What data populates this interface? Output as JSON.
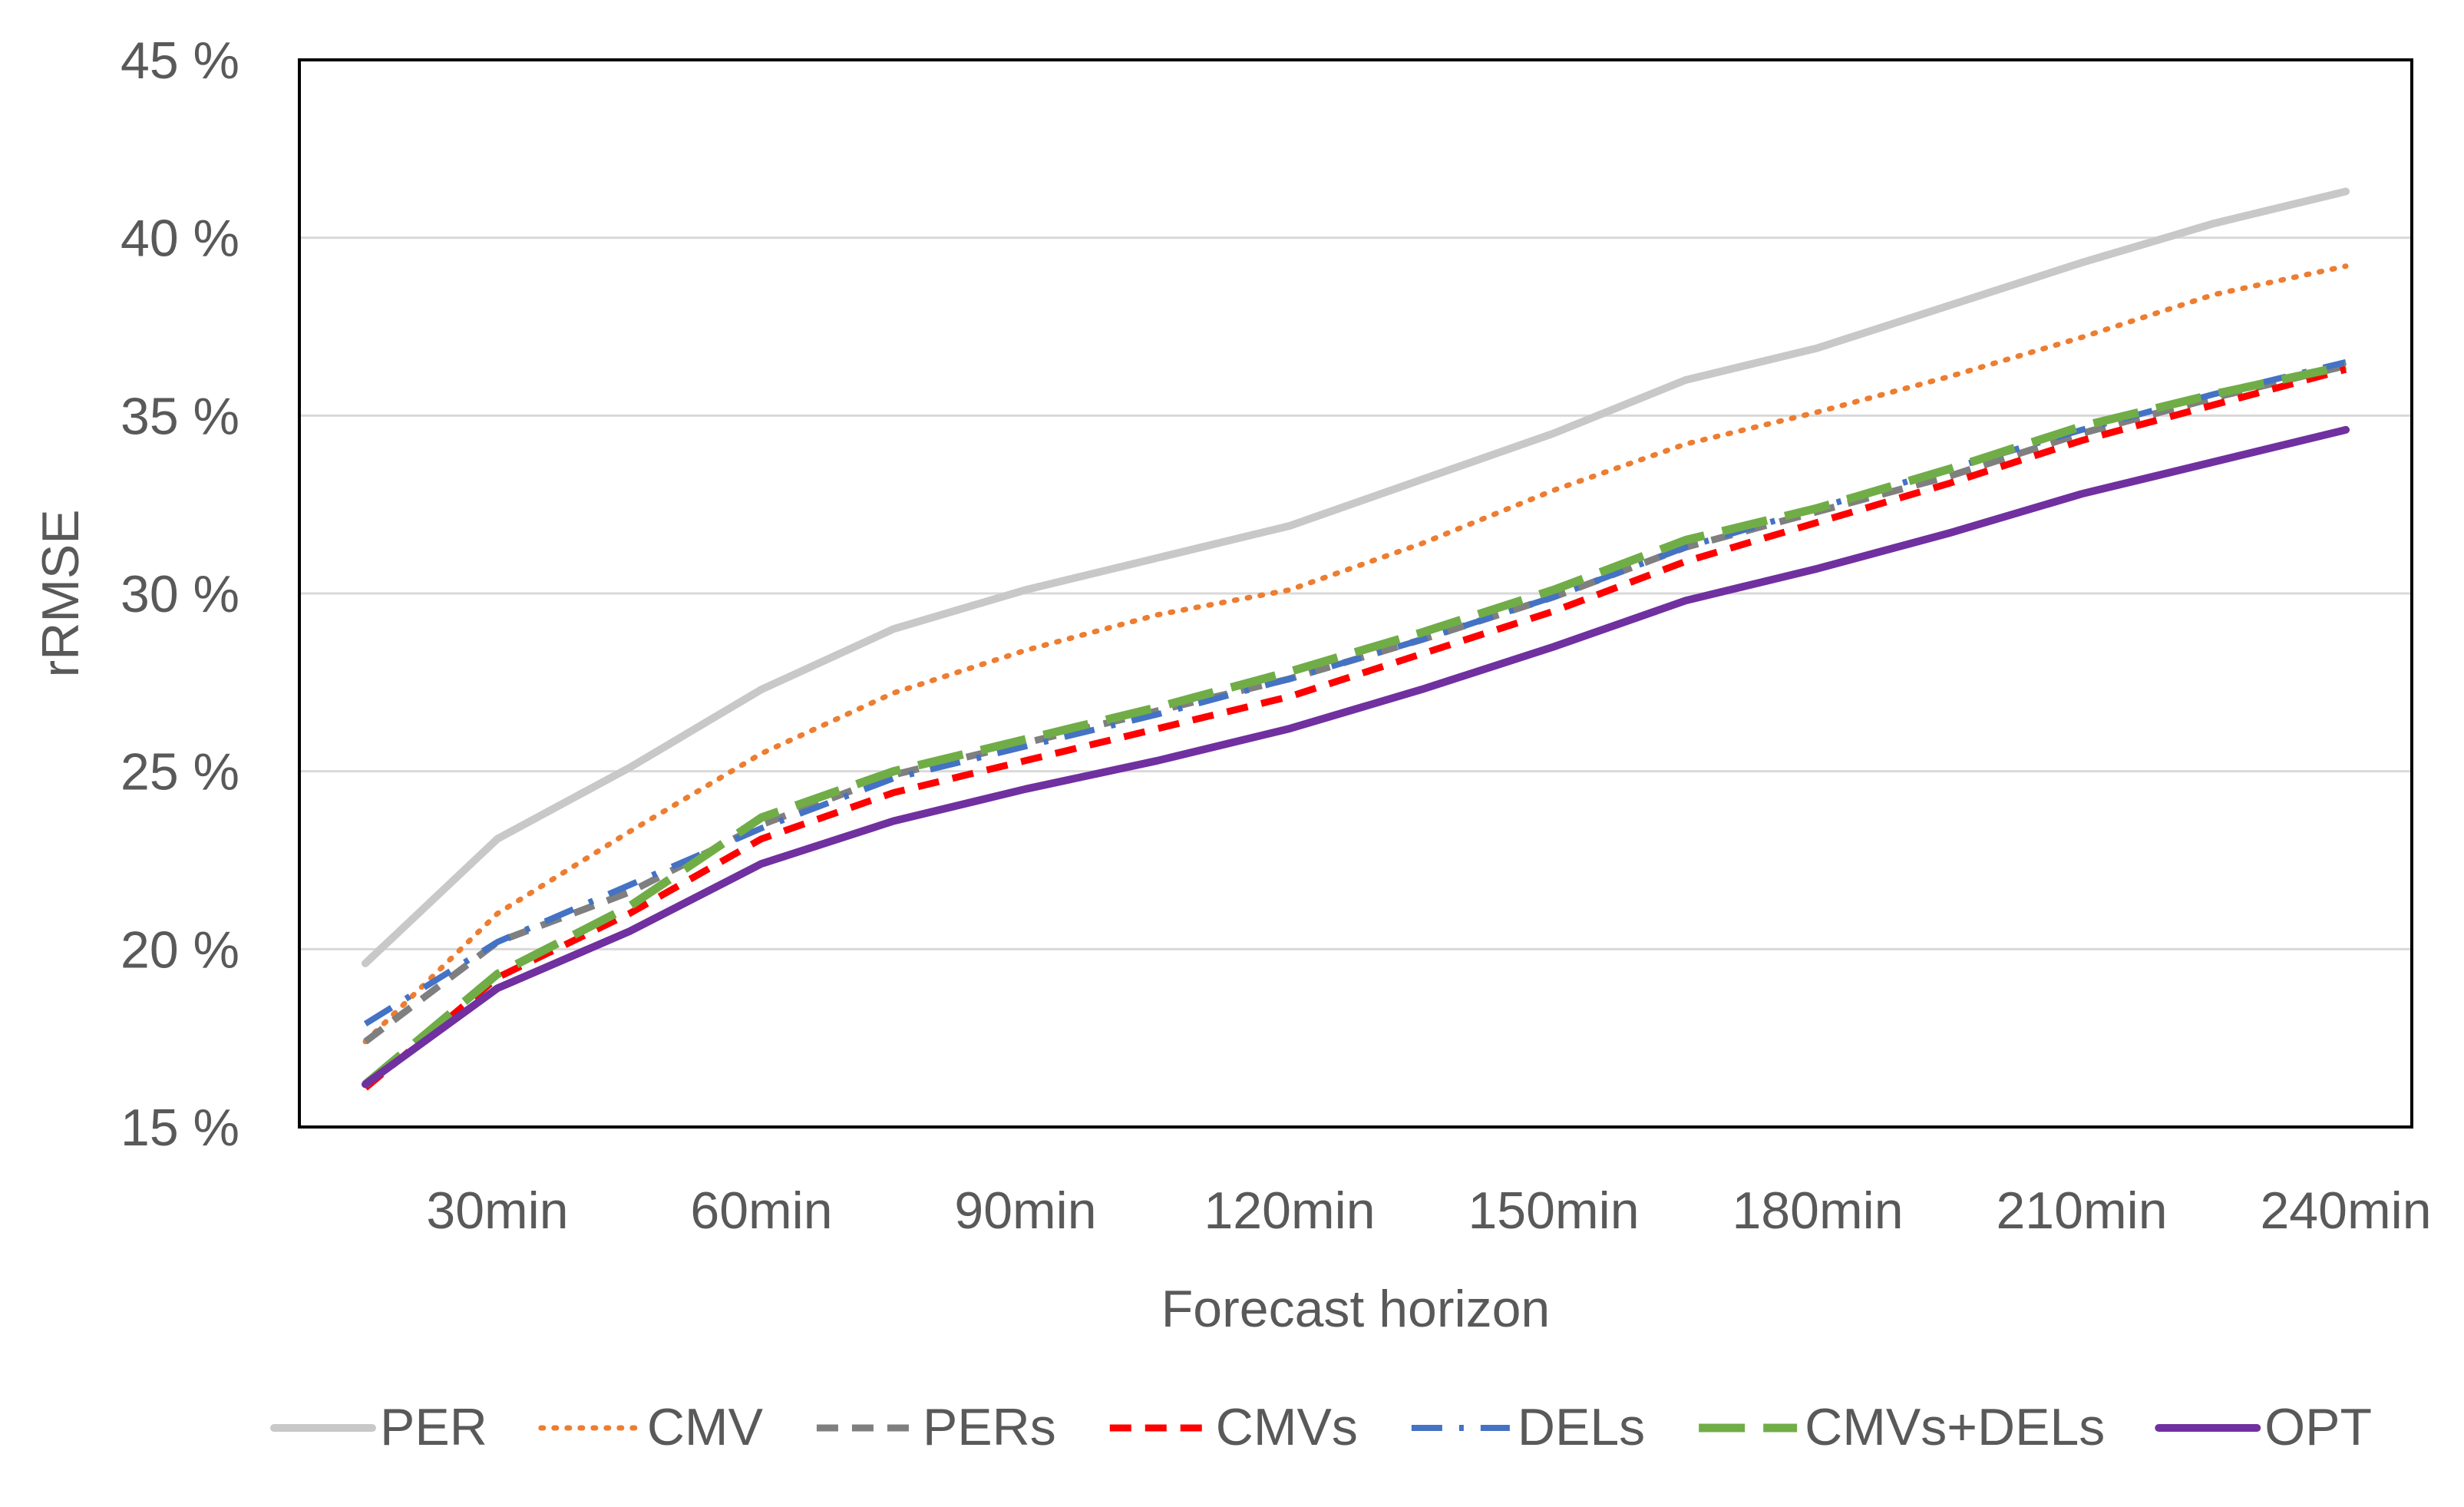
{
  "chart_data": {
    "type": "line",
    "title": "",
    "xlabel": "Forecast horizon",
    "ylabel": "rRMSE",
    "ylim": [
      15,
      45
    ],
    "yticks": [
      15,
      20,
      25,
      30,
      35,
      40,
      45
    ],
    "ytick_labels": [
      "15 %",
      "20 %",
      "25 %",
      "30 %",
      "35 %",
      "40 %",
      "45 %"
    ],
    "x": [
      15,
      30,
      45,
      60,
      75,
      90,
      105,
      120,
      135,
      150,
      165,
      180,
      195,
      210,
      225,
      240
    ],
    "xlim": [
      7.5,
      247.5
    ],
    "xticks": [
      30,
      60,
      90,
      120,
      150,
      180,
      210,
      240
    ],
    "xtick_labels": [
      "30min",
      "60min",
      "90min",
      "120min",
      "150min",
      "180min",
      "210min",
      "240min"
    ],
    "grid": "horizontal",
    "legend_position": "bottom",
    "series": [
      {
        "name": "PER",
        "color": "#c8c8c8",
        "style": "solid",
        "values": [
          19.6,
          23.1,
          25.1,
          27.3,
          29.0,
          30.1,
          31.0,
          31.9,
          33.2,
          34.5,
          36.0,
          36.9,
          38.1,
          39.3,
          40.4,
          41.3
        ]
      },
      {
        "name": "CMV",
        "color": "#ed7d31",
        "style": "dotted",
        "values": [
          17.4,
          21.0,
          23.3,
          25.5,
          27.2,
          28.4,
          29.4,
          30.1,
          31.4,
          32.9,
          34.2,
          35.1,
          36.1,
          37.2,
          38.4,
          39.2
        ]
      },
      {
        "name": "PERs",
        "color": "#7f7f7f",
        "style": "dash",
        "values": [
          17.4,
          20.2,
          21.6,
          23.5,
          24.9,
          25.8,
          26.7,
          27.6,
          28.7,
          29.9,
          31.3,
          32.3,
          33.3,
          34.5,
          35.5,
          36.4
        ]
      },
      {
        "name": "CMVs",
        "color": "#ff0000",
        "style": "dash",
        "values": [
          16.1,
          19.2,
          21.0,
          23.1,
          24.4,
          25.3,
          26.2,
          27.1,
          28.3,
          29.5,
          30.9,
          32.0,
          33.1,
          34.3,
          35.3,
          36.3
        ]
      },
      {
        "name": "DELs",
        "color": "#4472c4",
        "style": "dashdot",
        "values": [
          17.9,
          20.2,
          21.8,
          23.4,
          24.8,
          25.7,
          26.6,
          27.6,
          28.7,
          29.9,
          31.3,
          32.4,
          33.5,
          34.6,
          35.6,
          36.5
        ]
      },
      {
        "name": "CMVs+DELs",
        "color": "#70ad47",
        "style": "longdash",
        "values": [
          16.2,
          19.3,
          21.2,
          23.7,
          25.0,
          25.9,
          26.8,
          27.8,
          28.9,
          30.1,
          31.5,
          32.4,
          33.5,
          34.7,
          35.6,
          36.4
        ]
      },
      {
        "name": "OPT",
        "color": "#7030a0",
        "style": "solid",
        "values": [
          16.2,
          18.9,
          20.5,
          22.4,
          23.6,
          24.5,
          25.3,
          26.2,
          27.3,
          28.5,
          29.8,
          30.7,
          31.7,
          32.8,
          33.7,
          34.6
        ]
      }
    ]
  }
}
